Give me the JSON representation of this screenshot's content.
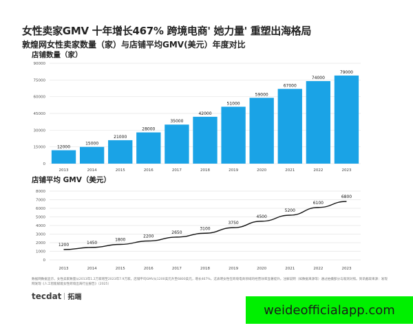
{
  "title": "女性卖家GMV 十年增长467%  跨境电商' 她力量' 重塑出海格局",
  "subtitle": "敦煌网女性卖家数量（家）与店铺平均GMV(美元）年度对比",
  "footnote": "数据网数据显示，女性卖家数量从2013年1.2万家增至2023年7.9万家。店铺平均GMV从1200美元升至6800美元，增长467%，这表明女性在跨境电商领域的经营效率显著提升。注解说明（如数据来源等）通过拍摄部分与观测对照。资讯截取来源：发现网发现《人工智能赋能女性跨境出海行业报告》（2025）",
  "logo": {
    "brand": "tecdat",
    "cn": "拓端"
  },
  "watermark": "weideofficialapp.com",
  "colors": {
    "bar": "#1aa3e6",
    "line": "#111111",
    "grid": "#e4e4e4"
  },
  "chart_data": [
    {
      "type": "bar",
      "title": "店铺数量（家）",
      "categories": [
        "2013",
        "2014",
        "2015",
        "2016",
        "2017",
        "2018",
        "2019",
        "2020",
        "2021",
        "2022",
        "2023"
      ],
      "values": [
        12000,
        15000,
        21000,
        28000,
        35000,
        42000,
        51000,
        59000,
        67000,
        74000,
        79000
      ],
      "yticks": [
        "0",
        "15000",
        "30000",
        "45000",
        "60000",
        "75000",
        "90000"
      ],
      "ylim": [
        0,
        90000
      ],
      "grid": true
    },
    {
      "type": "line",
      "title": "店铺平均 GMV（美元）",
      "categories": [
        "2013",
        "2014",
        "2015",
        "2016",
        "2017",
        "2018",
        "2019",
        "2020",
        "2021",
        "2022",
        "2023"
      ],
      "values": [
        1200,
        1450,
        1800,
        2200,
        2650,
        3100,
        3750,
        4500,
        5200,
        6100,
        6800
      ],
      "yticks": [
        "0",
        "1000",
        "2000",
        "3000",
        "4000",
        "5000",
        "6000",
        "7000",
        "8000"
      ],
      "ylim": [
        0,
        8000
      ],
      "grid": true
    }
  ]
}
